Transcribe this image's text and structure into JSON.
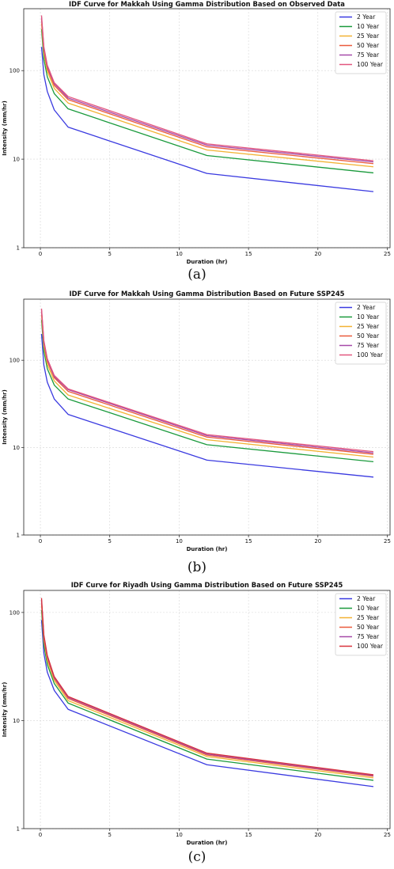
{
  "chart_data": [
    {
      "type": "line",
      "title": "IDF Curve for Makkah Using Gamma Distribution Based on Observed Data",
      "xlabel": "Duration (hr)",
      "ylabel": "Intensity (mm/hr)",
      "panel_label": "(a)",
      "xlim": [
        -1.2,
        25.2
      ],
      "ylim": [
        1,
        500
      ],
      "yscale": "log",
      "xticks": [
        0,
        5,
        10,
        15,
        20,
        25
      ],
      "yticks": [
        1,
        10,
        100
      ],
      "grid": true,
      "legend_position": "top-right",
      "x": [
        0.083,
        0.25,
        0.5,
        1,
        2,
        12,
        24
      ],
      "series": [
        {
          "name": "2 Year",
          "color": "#3a3ae0",
          "values": [
            185,
            90,
            58,
            36,
            23,
            6.9,
            4.3
          ]
        },
        {
          "name": "10 Year",
          "color": "#1a9a3c",
          "values": [
            295,
            135,
            85,
            55,
            37,
            11,
            7.0
          ]
        },
        {
          "name": "25 Year",
          "color": "#f2b233",
          "values": [
            340,
            158,
            98,
            63,
            43,
            12.7,
            8.2
          ]
        },
        {
          "name": "50 Year",
          "color": "#ea5a3c",
          "values": [
            380,
            172,
            106,
            68,
            47,
            13.8,
            8.9
          ]
        },
        {
          "name": "75 Year",
          "color": "#a64aa8",
          "values": [
            400,
            180,
            111,
            71,
            49,
            14.4,
            9.3
          ]
        },
        {
          "name": "100 Year",
          "color": "#e2567e",
          "values": [
            420,
            186,
            115,
            73,
            51,
            14.9,
            9.6
          ]
        }
      ]
    },
    {
      "type": "line",
      "title": "IDF Curve for Makkah Using Gamma Distribution Based on Future SSP245",
      "xlabel": "Duration (hr)",
      "ylabel": "Intensity (mm/hr)",
      "panel_label": "(b)",
      "xlim": [
        -1.2,
        25.2
      ],
      "ylim": [
        1,
        500
      ],
      "yscale": "log",
      "xticks": [
        0,
        5,
        10,
        15,
        20,
        25
      ],
      "yticks": [
        1,
        10,
        100
      ],
      "grid": true,
      "legend_position": "top-right",
      "x": [
        0.083,
        0.25,
        0.5,
        1,
        2,
        12,
        24
      ],
      "series": [
        {
          "name": "2 Year",
          "color": "#3a3ae0",
          "values": [
            200,
            88,
            56,
            36,
            24,
            7.2,
            4.6
          ]
        },
        {
          "name": "10 Year",
          "color": "#1a9a3c",
          "values": [
            290,
            128,
            80,
            52,
            36,
            10.8,
            6.9
          ]
        },
        {
          "name": "25 Year",
          "color": "#f2b233",
          "values": [
            330,
            145,
            90,
            58,
            40,
            12.3,
            7.8
          ]
        },
        {
          "name": "50 Year",
          "color": "#ea5a3c",
          "values": [
            360,
            157,
            98,
            63,
            44,
            13.2,
            8.4
          ]
        },
        {
          "name": "75 Year",
          "color": "#a64aa8",
          "values": [
            375,
            163,
            101,
            65,
            46,
            13.7,
            8.7
          ]
        },
        {
          "name": "100 Year",
          "color": "#e2567e",
          "values": [
            390,
            168,
            104,
            67,
            47,
            14.1,
            9.0
          ]
        }
      ]
    },
    {
      "type": "line",
      "title": "IDF Curve for Riyadh Using Gamma Distribution Based on Future SSP245",
      "xlabel": "Duration (hr)",
      "ylabel": "Intensity (mm/hr)",
      "panel_label": "(c)",
      "xlim": [
        -1.2,
        25.2
      ],
      "ylim": [
        1,
        160
      ],
      "yscale": "log",
      "xticks": [
        0,
        5,
        10,
        15,
        20,
        25
      ],
      "yticks": [
        1,
        10,
        100
      ],
      "grid": true,
      "legend_position": "top-right",
      "x": [
        0.083,
        0.25,
        0.5,
        1,
        2,
        12,
        24
      ],
      "series": [
        {
          "name": "2 Year",
          "color": "#3a3ae0",
          "values": [
            85,
            42,
            28,
            19,
            12.7,
            3.9,
            2.45
          ]
        },
        {
          "name": "10 Year",
          "color": "#1a9a3c",
          "values": [
            105,
            50,
            33,
            22,
            14.5,
            4.4,
            2.8
          ]
        },
        {
          "name": "25 Year",
          "color": "#f2b233",
          "values": [
            118,
            55,
            36,
            23.5,
            15.3,
            4.65,
            2.95
          ]
        },
        {
          "name": "50 Year",
          "color": "#ea5a3c",
          "values": [
            126,
            58,
            38,
            24.5,
            16.0,
            4.8,
            3.05
          ]
        },
        {
          "name": "75 Year",
          "color": "#a64aa8",
          "values": [
            131,
            60,
            39,
            25,
            16.4,
            4.9,
            3.1
          ]
        },
        {
          "name": "100 Year",
          "color": "#d8323c",
          "values": [
            136,
            62,
            40,
            25.5,
            16.7,
            5.0,
            3.15
          ]
        }
      ]
    }
  ]
}
